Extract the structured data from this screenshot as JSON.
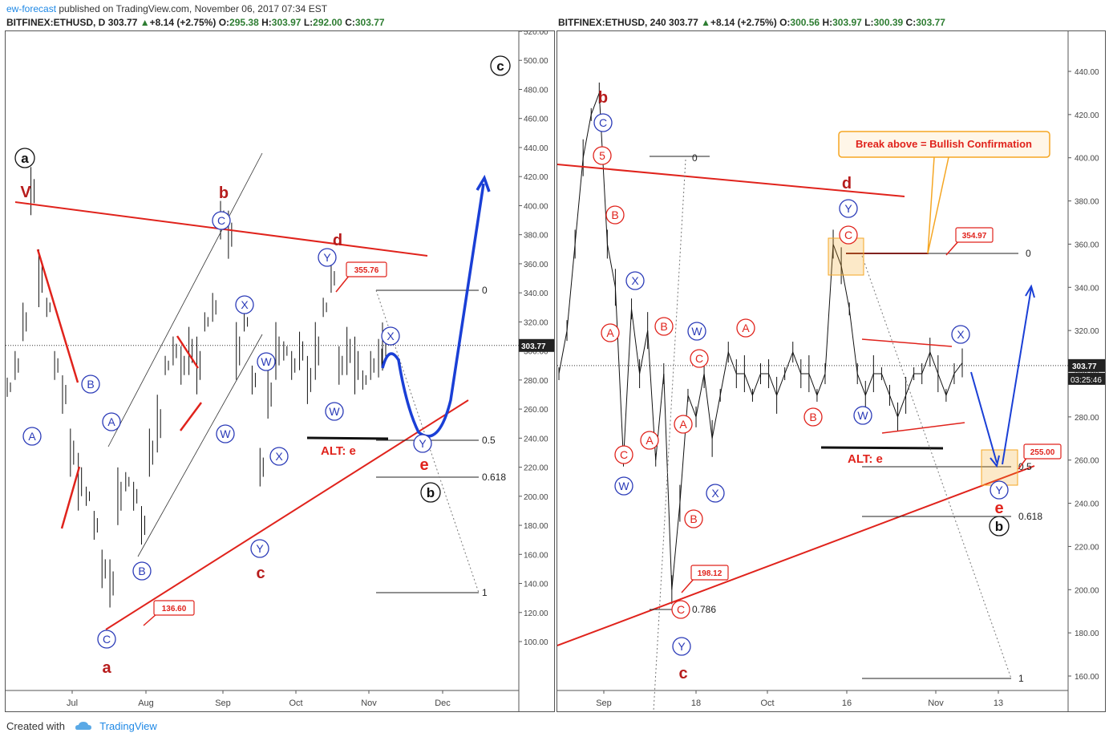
{
  "header": {
    "publisher": "ew-forecast",
    "published_text": "published on TradingView.com, November 06, 2017 07:34 EST"
  },
  "left": {
    "symbol": "BITFINEX:ETHUSD, D",
    "last": "303.77",
    "change": "+8.14 (+2.75%)",
    "o_label": "O:",
    "o": "295.38",
    "h_label": "H:",
    "h": "303.97",
    "l_label": "L:",
    "l": "292.00",
    "c_label": "C:",
    "c": "303.77"
  },
  "right": {
    "symbol": "BITFINEX:ETHUSD, 240",
    "last": "303.77",
    "change": "+8.14 (+2.75%)",
    "o_label": "O:",
    "o": "300.56",
    "h_label": "H:",
    "h": "303.97",
    "l_label": "L:",
    "l": "300.39",
    "c_label": "C:",
    "c": "303.77"
  },
  "colors": {
    "red": "#e0231c",
    "darkred": "#b71c1c",
    "blue": "#1a3fd6",
    "navy": "#2b3bb8",
    "orange": "#f5a623",
    "green": "#2e7d32",
    "price_tag": "#222222"
  },
  "chart_data": [
    {
      "type": "line",
      "title": "BITFINEX:ETHUSD, D",
      "ylim": [
        90,
        525
      ],
      "y_ticks": [
        "520.00",
        "500.00",
        "480.00",
        "460.00",
        "440.00",
        "420.00",
        "400.00",
        "380.00",
        "360.00",
        "340.00",
        "320.00",
        "300.00",
        "280.00",
        "260.00",
        "240.00",
        "220.00",
        "200.00",
        "180.00",
        "160.00",
        "140.00",
        "120.00",
        "100.00"
      ],
      "x_ticks": [
        "Jul",
        "Aug",
        "Sep",
        "Oct",
        "Nov",
        "Dec"
      ],
      "current_price": "303.77",
      "price_labels": [
        "355.76",
        "136.60"
      ],
      "fib_levels": [
        {
          "label": "0",
          "value": 356
        },
        {
          "label": "0.5",
          "value": 259
        },
        {
          "label": "0.618",
          "value": 234
        },
        {
          "label": "1",
          "value": 156
        }
      ],
      "wave_labels": [
        "a",
        "V",
        "b",
        "d",
        "c",
        "e",
        "a",
        "b",
        "c"
      ],
      "circled_labels": [
        "A",
        "B",
        "C",
        "A",
        "B",
        "C",
        "W",
        "X",
        "Y",
        "W",
        "X",
        "Y",
        "X",
        "Y",
        "Y",
        "W"
      ],
      "annotations": [
        "ALT: e"
      ],
      "series": [
        {
          "values": [
            [
              0,
              275
            ],
            [
              10,
              290
            ],
            [
              20,
              320
            ],
            [
              30,
              410
            ],
            [
              40,
              350
            ],
            [
              50,
              330
            ],
            [
              60,
              290
            ],
            [
              70,
              270
            ],
            [
              80,
              230
            ],
            [
              90,
              210
            ],
            [
              100,
              200
            ],
            [
              110,
              180
            ],
            [
              120,
              150
            ],
            [
              130,
              140
            ],
            [
              140,
              200
            ],
            [
              150,
              210
            ],
            [
              160,
              200
            ],
            [
              170,
              180
            ],
            [
              180,
              230
            ],
            [
              190,
              250
            ],
            [
              200,
              290
            ],
            [
              210,
              300
            ],
            [
              220,
              290
            ],
            [
              230,
              300
            ],
            [
              240,
              290
            ],
            [
              250,
              320
            ],
            [
              260,
              330
            ],
            [
              270,
              390
            ],
            [
              280,
              380
            ],
            [
              290,
              300
            ],
            [
              300,
              320
            ],
            [
              310,
              280
            ],
            [
              320,
              220
            ],
            [
              330,
              270
            ],
            [
              340,
              300
            ],
            [
              350,
              300
            ],
            [
              360,
              290
            ],
            [
              370,
              300
            ],
            [
              380,
              280
            ],
            [
              390,
              300
            ],
            [
              400,
              330
            ],
            [
              410,
              350
            ],
            [
              420,
              290
            ],
            [
              430,
              300
            ],
            [
              440,
              290
            ],
            [
              450,
              280
            ],
            [
              460,
              290
            ],
            [
              470,
              295
            ],
            [
              475,
              303
            ]
          ]
        }
      ]
    },
    {
      "type": "line",
      "title": "BITFINEX:ETHUSD, 240",
      "ylim": [
        150,
        460
      ],
      "y_ticks": [
        "440.00",
        "420.00",
        "400.00",
        "380.00",
        "360.00",
        "340.00",
        "320.00",
        "300.00",
        "280.00",
        "260.00",
        "240.00",
        "220.00",
        "200.00",
        "180.00",
        "160.00"
      ],
      "x_ticks": [
        "Sep",
        "18",
        "Oct",
        "16",
        "Nov",
        "13"
      ],
      "current_price": "303.77",
      "countdown": "03:25:46",
      "price_labels": [
        "354.97",
        "198.12",
        "255.00"
      ],
      "callout": "Break above = Bullish Confirmation",
      "fib_levels": [
        {
          "label": "0",
          "value": 355
        },
        {
          "label": "0.5",
          "value": 257
        },
        {
          "label": "0.618",
          "value": 234
        },
        {
          "label": "0.786",
          "value": 190
        },
        {
          "label": "1",
          "value": 160
        }
      ],
      "wave_labels": [
        "b",
        "d",
        "e",
        "c"
      ],
      "circled_labels": [
        "5",
        "B",
        "A",
        "C",
        "W",
        "X",
        "B",
        "A",
        "C",
        "A",
        "B",
        "C",
        "W",
        "A",
        "X",
        "C",
        "B",
        "Y",
        "C",
        "W",
        "X",
        "Y",
        "Y",
        "b"
      ],
      "annotations": [
        "ALT: e"
      ],
      "series": [
        {
          "values": [
            [
              0,
              300
            ],
            [
              10,
              320
            ],
            [
              20,
              360
            ],
            [
              30,
              400
            ],
            [
              40,
              420
            ],
            [
              50,
              430
            ],
            [
              60,
              360
            ],
            [
              70,
              340
            ],
            [
              80,
              260
            ],
            [
              90,
              330
            ],
            [
              100,
              300
            ],
            [
              110,
              320
            ],
            [
              120,
              260
            ],
            [
              130,
              300
            ],
            [
              140,
              200
            ],
            [
              150,
              240
            ],
            [
              160,
              290
            ],
            [
              170,
              280
            ],
            [
              180,
              300
            ],
            [
              190,
              270
            ],
            [
              200,
              290
            ],
            [
              210,
              310
            ],
            [
              220,
              300
            ],
            [
              230,
              300
            ],
            [
              240,
              290
            ],
            [
              250,
              300
            ],
            [
              260,
              300
            ],
            [
              270,
              290
            ],
            [
              280,
              300
            ],
            [
              290,
              310
            ],
            [
              300,
              300
            ],
            [
              310,
              300
            ],
            [
              320,
              290
            ],
            [
              330,
              300
            ],
            [
              340,
              360
            ],
            [
              350,
              350
            ],
            [
              360,
              330
            ],
            [
              370,
              300
            ],
            [
              380,
              290
            ],
            [
              390,
              300
            ],
            [
              400,
              300
            ],
            [
              410,
              290
            ],
            [
              420,
              280
            ],
            [
              430,
              290
            ],
            [
              440,
              300
            ],
            [
              450,
              300
            ],
            [
              460,
              310
            ],
            [
              470,
              300
            ],
            [
              480,
              290
            ],
            [
              490,
              300
            ],
            [
              500,
              305
            ]
          ]
        }
      ]
    }
  ],
  "footer": {
    "created_with": "Created with",
    "brand": "TradingView"
  }
}
